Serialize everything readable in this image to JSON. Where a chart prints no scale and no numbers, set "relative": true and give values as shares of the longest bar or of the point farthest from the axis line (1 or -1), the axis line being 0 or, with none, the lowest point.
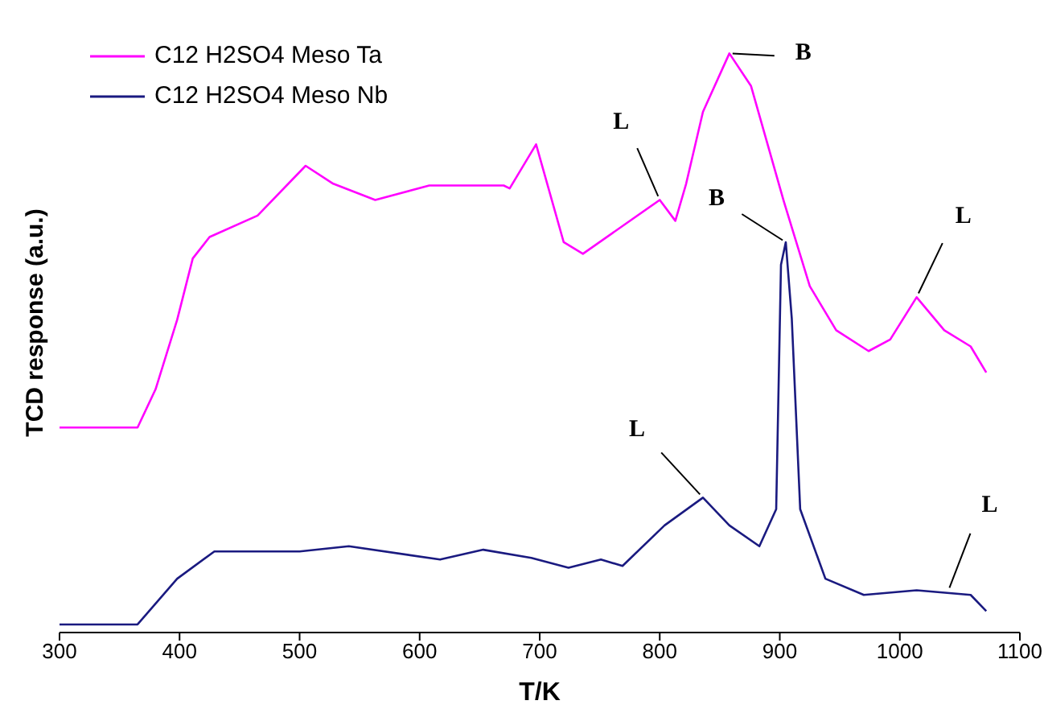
{
  "chart_data": {
    "type": "line",
    "relative": true,
    "xlabel": "T/K",
    "ylabel": "TCD response (a.u.)",
    "xlim": [
      300,
      1100
    ],
    "xticks": [
      300,
      400,
      500,
      600,
      700,
      800,
      900,
      1000,
      1100
    ],
    "legend": "top left",
    "grid": false,
    "marker": "none",
    "line_style": "solid",
    "series": [
      {
        "name": "C12 H2SO4 Meso Ta",
        "color": "#ff00ff",
        "x": [
          300,
          365,
          380,
          398,
          411,
          425,
          465,
          505,
          528,
          563,
          608,
          670,
          675,
          697,
          720,
          736,
          800,
          813,
          822,
          836,
          858,
          876,
          903,
          925,
          947,
          974,
          992,
          1014,
          1037,
          1059,
          1072
        ],
        "values": [
          0.354,
          0.354,
          0.42,
          0.54,
          0.646,
          0.683,
          0.72,
          0.806,
          0.775,
          0.747,
          0.772,
          0.772,
          0.767,
          0.843,
          0.674,
          0.654,
          0.747,
          0.711,
          0.775,
          0.899,
          1,
          0.944,
          0.747,
          0.598,
          0.522,
          0.486,
          0.506,
          0.579,
          0.522,
          0.494,
          0.449
        ]
      },
      {
        "name": "C12 H2SO4 Meso Nb",
        "color": "#1a1a80",
        "x": [
          300,
          365,
          398,
          429,
          500,
          541,
          617,
          653,
          693,
          724,
          751,
          769,
          804,
          836,
          858,
          883,
          897,
          901,
          905,
          910,
          917,
          938,
          970,
          1014,
          1059,
          1072
        ],
        "values": [
          0.014,
          0.014,
          0.093,
          0.14,
          0.14,
          0.149,
          0.126,
          0.143,
          0.129,
          0.112,
          0.126,
          0.115,
          0.185,
          0.233,
          0.185,
          0.149,
          0.213,
          0.635,
          0.674,
          0.542,
          0.213,
          0.093,
          0.065,
          0.073,
          0.065,
          0.037
        ]
      }
    ],
    "annotations": [
      {
        "text": "L",
        "x": 800,
        "y": 0.747
      },
      {
        "text": "B",
        "x": 858,
        "y": 1
      },
      {
        "text": "B",
        "x": 905,
        "y": 0.674
      },
      {
        "text": "L",
        "x": 1014,
        "y": 0.579
      },
      {
        "text": "L",
        "x": 836,
        "y": 0.233
      },
      {
        "text": "L",
        "x": 1040,
        "y": 0.07
      }
    ]
  }
}
